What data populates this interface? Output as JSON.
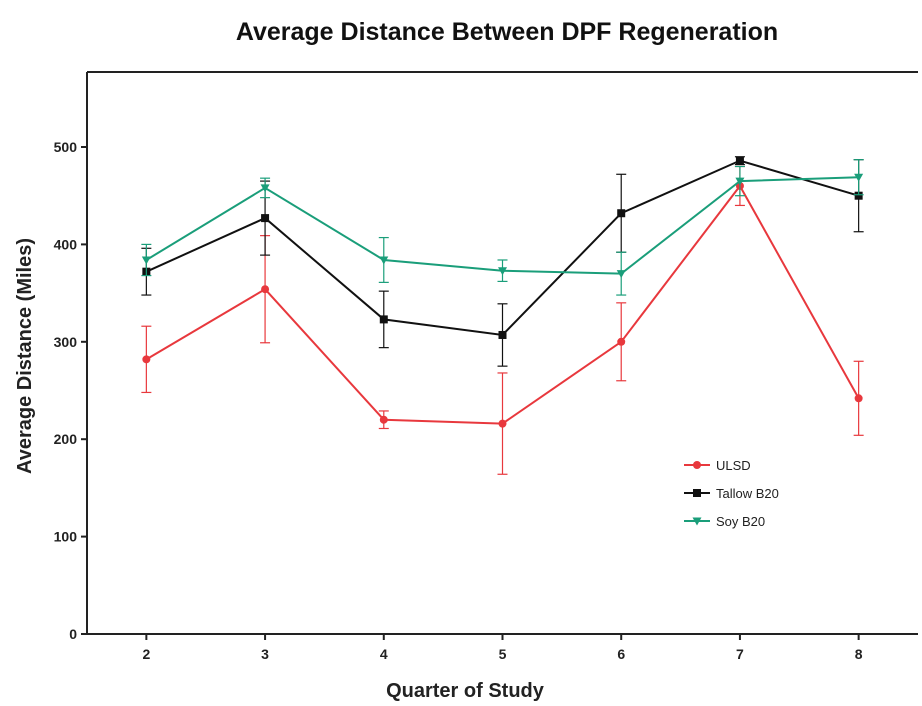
{
  "chart_data": {
    "type": "line",
    "title": "Average Distance Between DPF Regeneration",
    "xlabel": "Quarter of Study",
    "ylabel": "Average Distance (Miles)",
    "x": [
      2,
      3,
      4,
      5,
      6,
      7,
      8
    ],
    "x_ticks": [
      "2",
      "3",
      "4",
      "5",
      "6",
      "7",
      "8"
    ],
    "y_ticks": [
      "0",
      "100",
      "200",
      "300",
      "400",
      "500"
    ],
    "xlim": [
      1.5,
      8.5
    ],
    "ylim": [
      0,
      500
    ],
    "grid": false,
    "legend_position": "right-center",
    "series": [
      {
        "name": "ULSD",
        "color": "#e8383d",
        "marker": "circle",
        "values": [
          282,
          354,
          220,
          216,
          300,
          460,
          242
        ],
        "errors": [
          34,
          55,
          9,
          52,
          40,
          20,
          38
        ]
      },
      {
        "name": "Tallow B20",
        "color": "#111111",
        "marker": "square",
        "values": [
          372,
          427,
          323,
          307,
          432,
          486,
          450
        ],
        "errors": [
          24,
          38,
          29,
          32,
          40,
          4,
          37
        ]
      },
      {
        "name": "Soy B20",
        "color": "#1a9e7a",
        "marker": "triangle-down",
        "values": [
          384,
          458,
          384,
          373,
          370,
          465,
          469
        ],
        "errors": [
          16,
          10,
          23,
          11,
          22,
          15,
          18
        ]
      }
    ]
  }
}
